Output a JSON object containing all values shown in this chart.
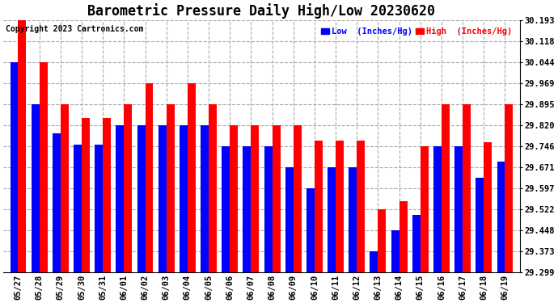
{
  "title": "Barometric Pressure Daily High/Low 20230620",
  "copyright": "Copyright 2023 Cartronics.com",
  "legend_low": "Low  (Inches/Hg)",
  "legend_high": "High  (Inches/Hg)",
  "dates": [
    "05/27",
    "05/28",
    "05/29",
    "05/30",
    "05/31",
    "06/01",
    "06/02",
    "06/03",
    "06/04",
    "06/05",
    "06/06",
    "06/07",
    "06/08",
    "06/09",
    "06/10",
    "06/11",
    "06/12",
    "06/13",
    "06/14",
    "06/15",
    "06/16",
    "06/17",
    "06/18",
    "06/19"
  ],
  "high_values": [
    30.193,
    30.044,
    29.895,
    29.846,
    29.846,
    29.895,
    29.969,
    29.895,
    29.969,
    29.895,
    29.82,
    29.82,
    29.82,
    29.82,
    29.766,
    29.766,
    29.766,
    29.522,
    29.55,
    29.746,
    29.895,
    29.895,
    29.76,
    29.895
  ],
  "low_values": [
    30.044,
    29.895,
    29.79,
    29.75,
    29.75,
    29.82,
    29.82,
    29.82,
    29.82,
    29.82,
    29.746,
    29.746,
    29.746,
    29.671,
    29.597,
    29.671,
    29.671,
    29.373,
    29.448,
    29.503,
    29.746,
    29.746,
    29.634,
    29.69
  ],
  "ylim_min": 29.299,
  "ylim_max": 30.193,
  "yticks": [
    29.299,
    29.373,
    29.448,
    29.522,
    29.597,
    29.671,
    29.746,
    29.82,
    29.895,
    29.969,
    30.044,
    30.118,
    30.193
  ],
  "bar_width": 0.38,
  "low_color": "#0000ff",
  "high_color": "#ff0000",
  "bg_color": "#ffffff",
  "grid_color": "#aaaaaa",
  "title_fontsize": 12,
  "label_fontsize": 7.5,
  "tick_fontsize": 7.5,
  "copyright_fontsize": 7
}
